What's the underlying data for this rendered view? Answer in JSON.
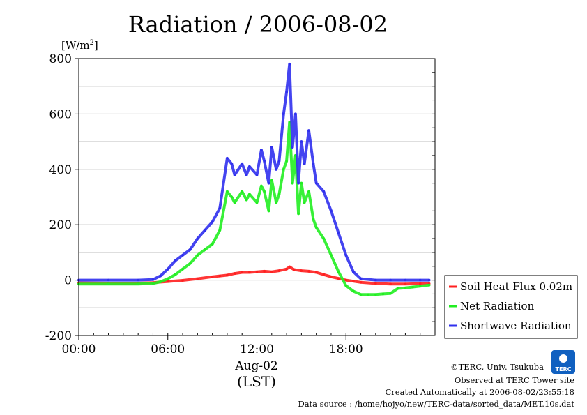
{
  "chart_data": {
    "type": "line",
    "title": "Radiation / 2006-08-02",
    "ylabel": "[W/m",
    "ylabel_sup": "2",
    "ylabel_close": "]",
    "ylim": [
      -200,
      800
    ],
    "yticks": [
      -200,
      0,
      200,
      400,
      600,
      800
    ],
    "xlim": [
      0,
      24
    ],
    "xticks": [
      0,
      6,
      12,
      18
    ],
    "xtick_labels": [
      "00:00",
      "06:00",
      "12:00",
      "18:00"
    ],
    "xlabel": "Aug-02",
    "xlabel2": "(LST)",
    "grid": true,
    "legend_position": "right",
    "series": [
      {
        "name": "Soil Heat Flux 0.02m",
        "color": "#ff2020",
        "x": [
          0,
          2,
          4,
          5,
          6,
          7,
          8,
          9,
          9.5,
          10,
          10.5,
          11,
          11.5,
          12,
          12.5,
          13,
          13.5,
          14,
          14.2,
          14.5,
          15,
          15.5,
          16,
          16.5,
          17,
          17.5,
          18,
          18.5,
          19,
          20,
          21,
          22,
          23,
          23.6
        ],
        "y": [
          -10,
          -11,
          -11,
          -9,
          -5,
          -1,
          5,
          12,
          15,
          18,
          24,
          28,
          28,
          30,
          32,
          30,
          34,
          40,
          48,
          38,
          34,
          32,
          28,
          20,
          12,
          6,
          0,
          -4,
          -8,
          -12,
          -14,
          -14,
          -13,
          -13
        ]
      },
      {
        "name": "Net Radiation",
        "color": "#22ee22",
        "x": [
          0,
          2,
          4,
          5,
          5.5,
          6,
          6.5,
          7,
          7.5,
          8,
          8.5,
          9,
          9.5,
          10,
          10.3,
          10.5,
          11,
          11.3,
          11.5,
          12,
          12.3,
          12.5,
          12.8,
          13,
          13.3,
          13.5,
          13.8,
          14,
          14.2,
          14.4,
          14.6,
          14.8,
          15,
          15.2,
          15.5,
          15.8,
          16,
          16.5,
          17,
          17.5,
          18,
          18.5,
          19,
          19.5,
          20,
          20.5,
          21,
          21.5,
          22,
          22.5,
          23,
          23.6
        ],
        "y": [
          -14,
          -14,
          -14,
          -12,
          -6,
          5,
          20,
          40,
          60,
          90,
          110,
          130,
          180,
          320,
          300,
          280,
          320,
          290,
          310,
          280,
          340,
          320,
          250,
          360,
          280,
          310,
          400,
          430,
          570,
          350,
          450,
          240,
          350,
          280,
          320,
          220,
          190,
          150,
          90,
          30,
          -20,
          -40,
          -52,
          -52,
          -52,
          -50,
          -48,
          -30,
          -28,
          -25,
          -22,
          -18
        ]
      },
      {
        "name": "Shortwave Radiation",
        "color": "#3030ee",
        "x": [
          0,
          2,
          4,
          5,
          5.5,
          6,
          6.5,
          7,
          7.5,
          8,
          8.5,
          9,
          9.5,
          10,
          10.3,
          10.5,
          11,
          11.3,
          11.5,
          12,
          12.3,
          12.5,
          12.8,
          13,
          13.3,
          13.5,
          13.8,
          14,
          14.2,
          14.4,
          14.6,
          14.8,
          15,
          15.2,
          15.5,
          15.8,
          16,
          16.5,
          17,
          17.5,
          18,
          18.5,
          19,
          20,
          21,
          22,
          23,
          23.6
        ],
        "y": [
          0,
          0,
          0,
          2,
          15,
          40,
          70,
          90,
          110,
          150,
          180,
          210,
          260,
          440,
          420,
          380,
          420,
          380,
          410,
          380,
          470,
          430,
          350,
          480,
          400,
          430,
          600,
          680,
          780,
          480,
          600,
          350,
          500,
          420,
          540,
          420,
          350,
          320,
          250,
          170,
          90,
          30,
          5,
          0,
          0,
          0,
          0,
          0
        ]
      }
    ]
  },
  "footer": {
    "copyright": "©TERC, Univ. Tsukuba",
    "observed": "Observed at TERC Tower site",
    "created": "Created Automatically at 2006-08-02/23:55:18",
    "source": "Data source : /home/hojyo/new/TERC-data/sorted_data/MET.10s.dat"
  },
  "logo": {
    "text": "TERC",
    "color": "#1060c0"
  }
}
